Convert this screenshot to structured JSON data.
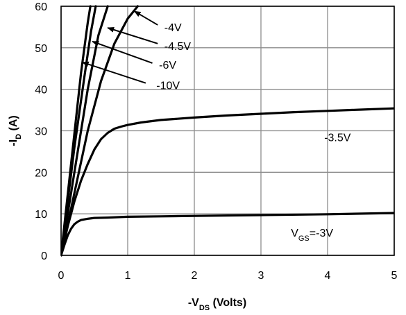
{
  "chart_data": {
    "type": "line",
    "title": "",
    "xlabel": {
      "prefix": "-V",
      "sub": "DS",
      "suffix": " (Volts)"
    },
    "ylabel": {
      "prefix": "-I",
      "sub": "D",
      "suffix": " (A)"
    },
    "xlim": [
      0,
      5
    ],
    "ylim": [
      0,
      60
    ],
    "x_ticks": [
      "0",
      "1",
      "2",
      "3",
      "4",
      "5"
    ],
    "y_ticks": [
      "0",
      "10",
      "20",
      "30",
      "40",
      "50",
      "60"
    ],
    "grid": true,
    "legend": "none",
    "series": [
      {
        "x": [
          0,
          0.05,
          0.1,
          0.15,
          0.2,
          0.25,
          0.3,
          0.4,
          0.5,
          0.7,
          1,
          1.5,
          2,
          3,
          4,
          5
        ],
        "y": [
          0,
          2.5,
          4.8,
          6.4,
          7.5,
          8.1,
          8.5,
          8.8,
          9.0,
          9.1,
          9.3,
          9.4,
          9.5,
          9.7,
          9.9,
          10.2
        ]
      },
      {
        "x": [
          0,
          0.1,
          0.2,
          0.3,
          0.4,
          0.5,
          0.6,
          0.7,
          0.8,
          0.9,
          1,
          1.2,
          1.5,
          2,
          2.5,
          3,
          3.5,
          4,
          4.5,
          5
        ],
        "y": [
          0,
          7,
          13,
          18,
          22,
          25.5,
          28,
          29.5,
          30.5,
          31,
          31.4,
          32,
          32.6,
          33.2,
          33.7,
          34.1,
          34.5,
          34.8,
          35.1,
          35.4
        ]
      },
      {
        "x": [
          0,
          0.2,
          0.4,
          0.6,
          0.8,
          1.0,
          1.15
        ],
        "y": [
          0,
          15,
          30,
          42,
          51,
          57,
          60
        ]
      },
      {
        "x": [
          0,
          0.2,
          0.4,
          0.56,
          0.7
        ],
        "y": [
          0,
          20,
          40,
          53,
          60
        ]
      },
      {
        "x": [
          0,
          0.2,
          0.35,
          0.45,
          0.52
        ],
        "y": [
          0,
          26,
          43,
          54,
          60
        ]
      },
      {
        "x": [
          0,
          0.15,
          0.3,
          0.4,
          0.44
        ],
        "y": [
          0,
          22,
          44,
          56,
          60
        ]
      }
    ],
    "annotations": [
      {
        "prefix": "-4V",
        "sub": "",
        "suffix": "",
        "at": [
          1.55,
          54
        ],
        "arrow_from": [
          1.45,
          55.5
        ],
        "arrow_to": [
          1.1,
          58.8
        ]
      },
      {
        "prefix": "-4.5V",
        "sub": "",
        "suffix": "",
        "at": [
          1.55,
          49.5
        ],
        "arrow_from": [
          1.45,
          51
        ],
        "arrow_to": [
          0.7,
          54.8
        ]
      },
      {
        "prefix": "-6V",
        "sub": "",
        "suffix": "",
        "at": [
          1.47,
          45
        ],
        "arrow_from": [
          1.37,
          46.3
        ],
        "arrow_to": [
          0.47,
          51.5
        ]
      },
      {
        "prefix": "-10V",
        "sub": "",
        "suffix": "",
        "at": [
          1.43,
          40
        ],
        "arrow_from": [
          1.27,
          41.5
        ],
        "arrow_to": [
          0.32,
          46.5
        ]
      },
      {
        "prefix": "-3.5V",
        "sub": "",
        "suffix": "",
        "at": [
          3.95,
          27.5
        ]
      },
      {
        "prefix": "V",
        "sub": "GS",
        "suffix": "=-3V",
        "at": [
          3.45,
          4.5
        ]
      }
    ]
  }
}
